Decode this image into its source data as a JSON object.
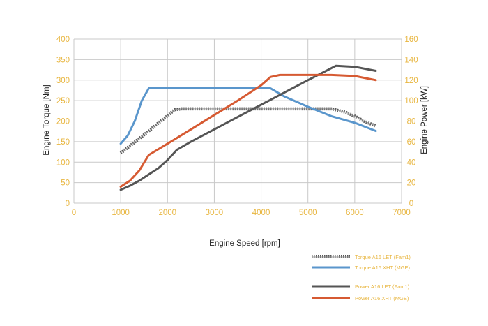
{
  "chart_data": {
    "type": "line",
    "x_axis": {
      "label": "Engine Speed [rpm]",
      "min": 0,
      "max": 7000,
      "ticks": [
        0,
        1000,
        2000,
        3000,
        4000,
        5000,
        6000,
        7000
      ]
    },
    "y_left": {
      "label": "Engine Torque [Nm]",
      "min": 0,
      "max": 400,
      "ticks": [
        0,
        50,
        100,
        150,
        200,
        250,
        300,
        350,
        400
      ]
    },
    "y_right": {
      "label": "Engine Power [kW]",
      "min": 0,
      "max": 160,
      "ticks": [
        0,
        20,
        40,
        60,
        80,
        100,
        120,
        140,
        160
      ]
    },
    "grid": true,
    "colors": {
      "tick": "#e8b640",
      "legend_text": "#e8b640",
      "grid": "#c9c9c9"
    },
    "series": [
      {
        "name": "Torque A16 LET (Fam1)",
        "axis": "left",
        "color": "#555555",
        "style": "hatched",
        "x": [
          1000,
          1200,
          1400,
          1600,
          1800,
          2000,
          2150,
          2300,
          2600,
          3000,
          4000,
          5000,
          5500,
          5800,
          6000,
          6200,
          6450
        ],
        "y": [
          122,
          140,
          158,
          176,
          195,
          213,
          228,
          230,
          230,
          230,
          230,
          230,
          230,
          222,
          212,
          200,
          188
        ]
      },
      {
        "name": "Torque A16 XHT (MGE)",
        "axis": "left",
        "color": "#5a96cc",
        "style": "solid",
        "x": [
          1000,
          1150,
          1300,
          1450,
          1600,
          2000,
          3000,
          4000,
          4200,
          4500,
          5000,
          5500,
          6000,
          6450
        ],
        "y": [
          145,
          165,
          200,
          250,
          280,
          280,
          280,
          280,
          280,
          260,
          235,
          212,
          196,
          176
        ]
      },
      {
        "name": "Power A16 LET (Fam1)",
        "axis": "right",
        "color": "#555555",
        "style": "solid",
        "x": [
          1000,
          1200,
          1400,
          1600,
          1800,
          2000,
          2200,
          2500,
          3000,
          3500,
          4000,
          4500,
          5000,
          5300,
          5600,
          6000,
          6450
        ],
        "y": [
          13,
          17,
          22,
          28,
          34,
          42,
          52,
          60,
          72,
          84,
          96,
          108,
          120,
          127,
          134,
          133,
          129
        ]
      },
      {
        "name": "Power A16 XHT (MGE)",
        "axis": "right",
        "color": "#d65a32",
        "style": "solid",
        "x": [
          1000,
          1200,
          1400,
          1600,
          2000,
          2500,
          3000,
          3500,
          4000,
          4200,
          4400,
          5000,
          5500,
          6000,
          6450
        ],
        "y": [
          16,
          22,
          32,
          47,
          58,
          72,
          86,
          100,
          115,
          123,
          125,
          125,
          125,
          124,
          120
        ]
      }
    ],
    "legend": {
      "position": "bottom-right",
      "entries": [
        "Torque A16 LET (Fam1)",
        "Torque A16 XHT (MGE)",
        "Power  A16 LET (Fam1)",
        "Power  A16 XHT (MGE)"
      ]
    }
  }
}
